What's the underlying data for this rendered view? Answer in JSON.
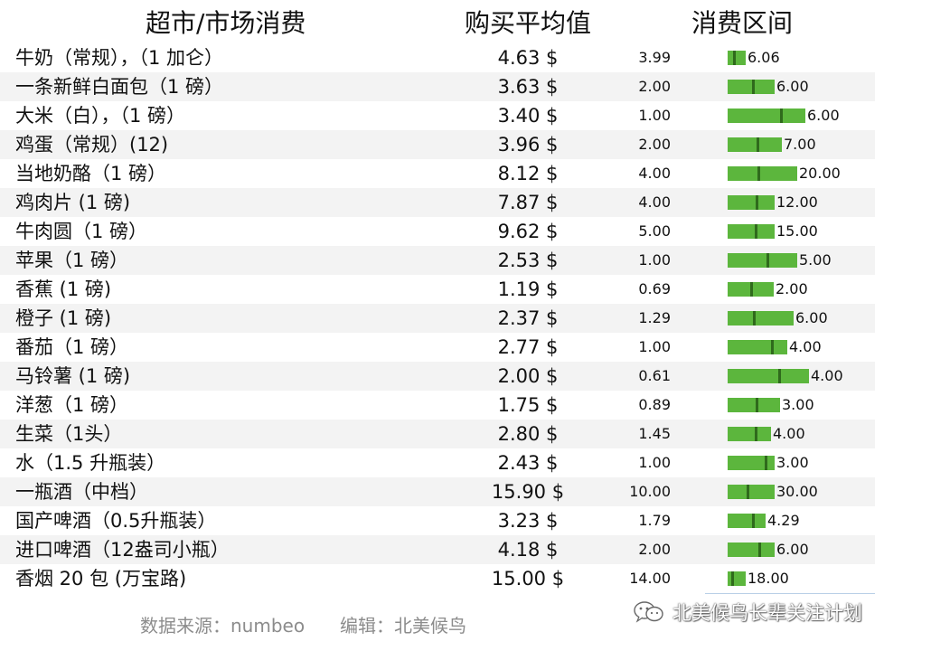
{
  "header": {
    "item": "超市/市场消费",
    "average": "购买平均值",
    "range": "消费区间"
  },
  "footer": {
    "source": "数据来源：numbeo",
    "editor": "编辑：北美候鸟"
  },
  "watermark": {
    "text": "北美候鸟长辈关注计划",
    "icon": "wechat-icon"
  },
  "colors": {
    "bar": "#5cb63d",
    "marker": "#2f6a1c",
    "alt_row": "#f3f3f3"
  },
  "chart_data": {
    "type": "table",
    "columns": [
      "超市/市场消费",
      "购买平均值",
      "消费区间"
    ],
    "rows": [
      {
        "item": "牛奶（常规），（1 加仑）",
        "average": "4.63 $",
        "avg_value": 4.63,
        "min": "3.99",
        "max": "6.06",
        "min_value": 3.99,
        "max_value": 6.06
      },
      {
        "item": "一条新鲜白面包（1 磅）",
        "average": "3.63 $",
        "avg_value": 3.63,
        "min": "2.00",
        "max": "6.00",
        "min_value": 2.0,
        "max_value": 6.0
      },
      {
        "item": "大米（白），（1 磅）",
        "average": "3.40 $",
        "avg_value": 3.4,
        "min": "1.00",
        "max": "6.00",
        "min_value": 1.0,
        "max_value": 6.0
      },
      {
        "item": "鸡蛋（常规）(12)",
        "average": "3.96 $",
        "avg_value": 3.96,
        "min": "2.00",
        "max": "7.00",
        "min_value": 2.0,
        "max_value": 7.0
      },
      {
        "item": "当地奶酪（1 磅）",
        "average": "8.12 $",
        "avg_value": 8.12,
        "min": "4.00",
        "max": "20.00",
        "min_value": 4.0,
        "max_value": 20.0
      },
      {
        "item": "鸡肉片 (1 磅)",
        "average": "7.87 $",
        "avg_value": 7.87,
        "min": "4.00",
        "max": "12.00",
        "min_value": 4.0,
        "max_value": 12.0
      },
      {
        "item": "牛肉圆（1 磅）",
        "average": "9.62 $",
        "avg_value": 9.62,
        "min": "5.00",
        "max": "15.00",
        "min_value": 5.0,
        "max_value": 15.0
      },
      {
        "item": "苹果（1 磅）",
        "average": "2.53 $",
        "avg_value": 2.53,
        "min": "1.00",
        "max": "5.00",
        "min_value": 1.0,
        "max_value": 5.0
      },
      {
        "item": "香蕉 (1 磅)",
        "average": "1.19 $",
        "avg_value": 1.19,
        "min": "0.69",
        "max": "2.00",
        "min_value": 0.69,
        "max_value": 2.0
      },
      {
        "item": "橙子 (1 磅)",
        "average": "2.37 $",
        "avg_value": 2.37,
        "min": "1.29",
        "max": "6.00",
        "min_value": 1.29,
        "max_value": 6.0
      },
      {
        "item": "番茄（1 磅）",
        "average": "2.77 $",
        "avg_value": 2.77,
        "min": "1.00",
        "max": "4.00",
        "min_value": 1.0,
        "max_value": 4.0
      },
      {
        "item": "马铃薯 (1 磅)",
        "average": "2.00 $",
        "avg_value": 2.0,
        "min": "0.61",
        "max": "4.00",
        "min_value": 0.61,
        "max_value": 4.0
      },
      {
        "item": "洋葱（1 磅）",
        "average": "1.75 $",
        "avg_value": 1.75,
        "min": "0.89",
        "max": "3.00",
        "min_value": 0.89,
        "max_value": 3.0
      },
      {
        "item": "生菜（1头）",
        "average": "2.80 $",
        "avg_value": 2.8,
        "min": "1.45",
        "max": "4.00",
        "min_value": 1.45,
        "max_value": 4.0
      },
      {
        "item": "水（1.5 升瓶装）",
        "average": "2.43 $",
        "avg_value": 2.43,
        "min": "1.00",
        "max": "3.00",
        "min_value": 1.0,
        "max_value": 3.0
      },
      {
        "item": "一瓶酒（中档）",
        "average": "15.90 $",
        "avg_value": 15.9,
        "min": "10.00",
        "max": "30.00",
        "min_value": 10.0,
        "max_value": 30.0
      },
      {
        "item": "国产啤酒（0.5升瓶装）",
        "average": "3.23 $",
        "avg_value": 3.23,
        "min": "1.79",
        "max": "4.29",
        "min_value": 1.79,
        "max_value": 4.29
      },
      {
        "item": "进口啤酒（12盎司小瓶）",
        "average": "4.18 $",
        "avg_value": 4.18,
        "min": "2.00",
        "max": "6.00",
        "min_value": 2.0,
        "max_value": 6.0
      },
      {
        "item": "香烟 20 包 (万宝路)",
        "average": "15.00 $",
        "avg_value": 15.0,
        "min": "14.00",
        "max": "18.00",
        "min_value": 14.0,
        "max_value": 18.0
      }
    ]
  }
}
